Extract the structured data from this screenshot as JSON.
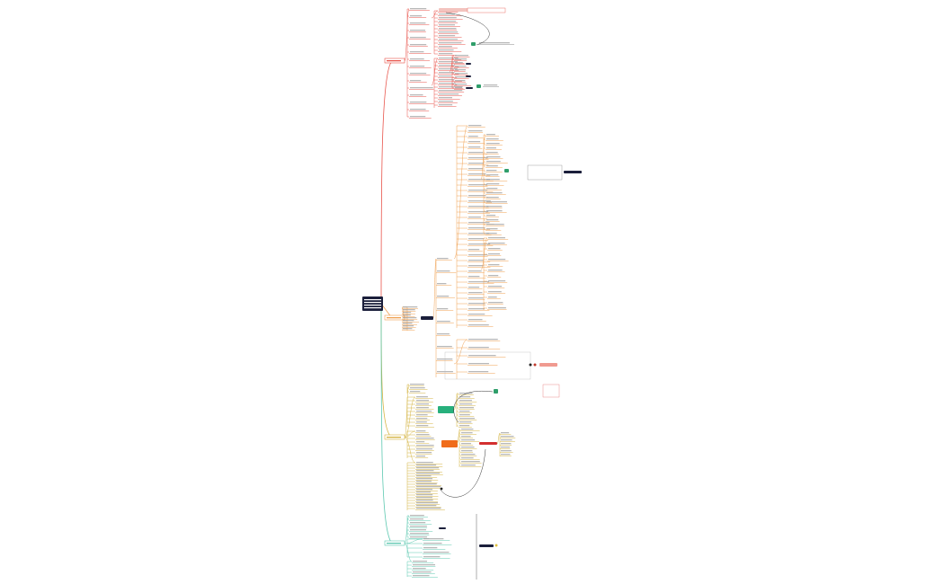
{
  "branches": [
    {
      "color": "#e8534a"
    },
    {
      "color": "#f0a050"
    },
    {
      "color": "#d4b340"
    },
    {
      "color": "#5cc8b0"
    }
  ],
  "root_color": "#1b1f3b"
}
